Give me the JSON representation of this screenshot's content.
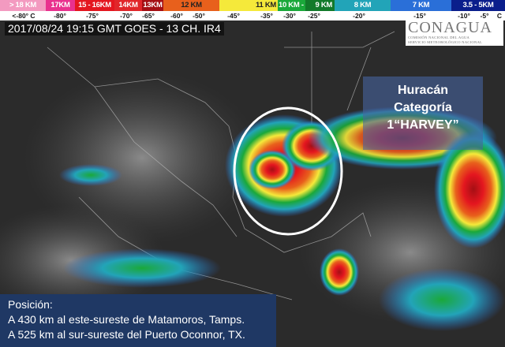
{
  "legend": {
    "bands": [
      {
        "label": "> 18 KM",
        "color": "#f39ac0"
      },
      {
        "label": "17KM",
        "color": "#e9318e"
      },
      {
        "label": "15 - 16KM",
        "color": "#e4161f"
      },
      {
        "label": "14KM",
        "color": "#e1262a"
      },
      {
        "label": "13KM",
        "color": "#a50f14"
      },
      {
        "label": "12 KM",
        "color": "#e8601c"
      },
      {
        "label": "11 KM",
        "color": "#f5e93a"
      },
      {
        "label": "10 KM -",
        "color": "#1aa83a"
      },
      {
        "label": "9 KM",
        "color": "#127a2a"
      },
      {
        "label": "8 KM",
        "color": "#22a4b8"
      },
      {
        "label": "7 KM",
        "color": "#2a6fd8"
      },
      {
        "label": "3.5 - 5KM",
        "color": "#0a1e8c"
      }
    ],
    "temperatures": [
      "<-80° C",
      "-80°",
      "-75°",
      "-70°",
      "-65°",
      "-60°",
      "-50°",
      "-45°",
      "-35°",
      "-30°",
      "-25°",
      "-20°",
      "-15°",
      "-10°",
      "-5°",
      "C"
    ]
  },
  "timestamp": "2017/08/24 19:15 GMT GOES - 13 CH. IR4",
  "logo": {
    "name": "CONAGUA",
    "line1": "COMISIÓN NACIONAL DEL AGUA",
    "line2": "SERVICIO METEOROLÓGICO NACIONAL"
  },
  "hurricane_label": {
    "line1": "Huracán",
    "line2": "Categoría",
    "line3": "1“HARVEY”"
  },
  "position": {
    "title": "Posición:",
    "line1": "A 430 km al este-sureste de Matamoros, Tamps.",
    "line2": "A 525 km al sur-sureste del Puerto Oconnor, TX."
  }
}
